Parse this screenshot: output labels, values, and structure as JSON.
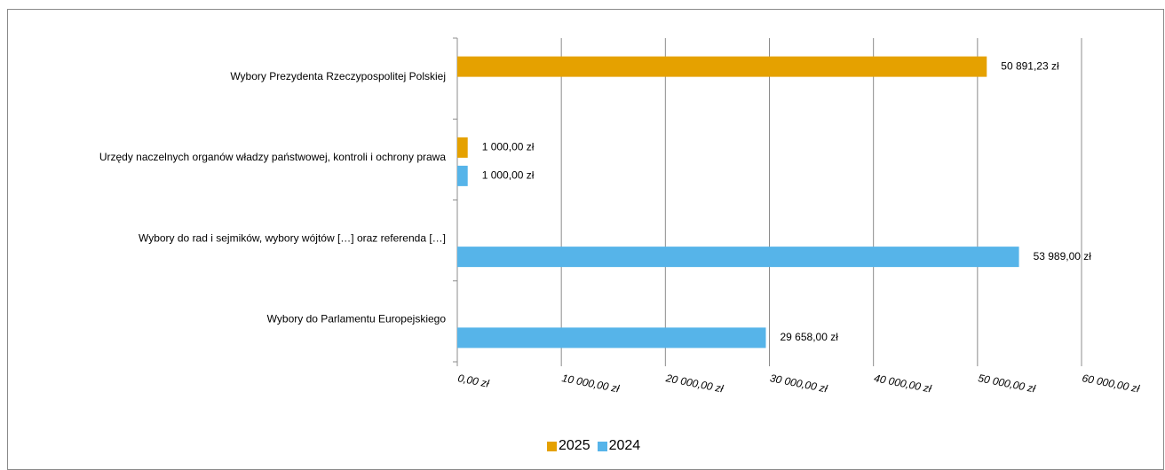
{
  "colors": {
    "series_2025": "#E5A100",
    "series_2024": "#56B4E9",
    "gridline": "#8c8c8c",
    "axis": "#8c8c8c"
  },
  "chart_data": {
    "type": "bar",
    "orientation": "horizontal",
    "categories": [
      "Wybory Prezydenta Rzeczypospolitej Polskiej",
      "Urzędy naczelnych organów władzy państwowej, kontroli i ochrony prawa",
      "Wybory do rad i sejmików, wybory wójtów […] oraz referenda […]",
      "Wybory do Parlamentu Europejskiego"
    ],
    "series": [
      {
        "name": "2025",
        "color": "#E5A100",
        "values": [
          50891.23,
          1000.0,
          null,
          null
        ],
        "labels": [
          "50 891,23 zł",
          "1 000,00 zł",
          "",
          ""
        ]
      },
      {
        "name": "2024",
        "color": "#56B4E9",
        "values": [
          null,
          1000.0,
          53989.0,
          29658.0
        ],
        "labels": [
          "",
          "1 000,00 zł",
          "53 989,00 zł",
          "29 658,00 zł"
        ]
      }
    ],
    "xlim": [
      0,
      60000
    ],
    "x_ticks": [
      0,
      10000,
      20000,
      30000,
      40000,
      50000,
      60000
    ],
    "x_tick_labels": [
      "0,00 zł",
      "10 000,00 zł",
      "20 000,00 zł",
      "30 000,00 zł",
      "40 000,00 zł",
      "50 000,00 zł",
      "60 000,00 zł"
    ],
    "grid": "vertical",
    "legend": {
      "position": "bottom",
      "entries": [
        "2025",
        "2024"
      ]
    }
  }
}
